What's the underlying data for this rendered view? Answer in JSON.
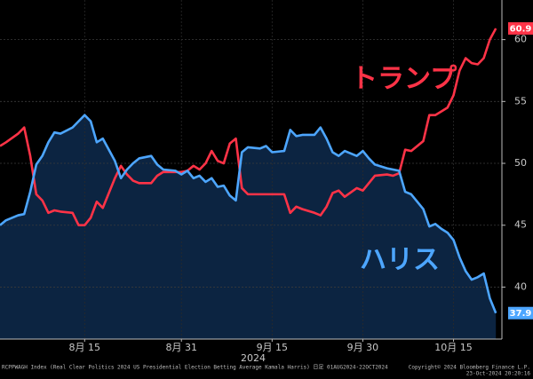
{
  "chart_data": {
    "type": "line",
    "x_label": "2024",
    "footer_left": "RCPPWAGH Index (Real Clear Politics 2024 US Presidential Election Betting Average Kamala Harris) 日足 01AUG2024-22OCT2024",
    "footer_right": "Copyright© 2024 Bloomberg Finance L.P.",
    "footer_time": "23-Oct-2024 20:20:16",
    "x": [
      "2024-08-01",
      "2024-08-02",
      "2024-08-04",
      "2024-08-05",
      "2024-08-06",
      "2024-08-07",
      "2024-08-08",
      "2024-08-09",
      "2024-08-10",
      "2024-08-11",
      "2024-08-13",
      "2024-08-14",
      "2024-08-15",
      "2024-08-16",
      "2024-08-17",
      "2024-08-18",
      "2024-08-20",
      "2024-08-21",
      "2024-08-22",
      "2024-08-23",
      "2024-08-24",
      "2024-08-26",
      "2024-08-27",
      "2024-08-28",
      "2024-08-30",
      "2024-08-31",
      "2024-09-01",
      "2024-09-02",
      "2024-09-03",
      "2024-09-04",
      "2024-09-05",
      "2024-09-06",
      "2024-09-07",
      "2024-09-08",
      "2024-09-09",
      "2024-09-10",
      "2024-09-11",
      "2024-09-13",
      "2024-09-14",
      "2024-09-15",
      "2024-09-17",
      "2024-09-18",
      "2024-09-19",
      "2024-09-20",
      "2024-09-22",
      "2024-09-23",
      "2024-09-24",
      "2024-09-25",
      "2024-09-26",
      "2024-09-27",
      "2024-09-29",
      "2024-09-30",
      "2024-10-01",
      "2024-10-02",
      "2024-10-04",
      "2024-10-05",
      "2024-10-06",
      "2024-10-07",
      "2024-10-08",
      "2024-10-10",
      "2024-10-11",
      "2024-10-12",
      "2024-10-13",
      "2024-10-14",
      "2024-10-15",
      "2024-10-16",
      "2024-10-17",
      "2024-10-18",
      "2024-10-19",
      "2024-10-20",
      "2024-10-21",
      "2024-10-22"
    ],
    "series": [
      {
        "name": "トランプ",
        "color": "#ff3347",
        "values": [
          51.4,
          51.7,
          52.4,
          52.9,
          50.6,
          47.5,
          47.0,
          46.0,
          46.2,
          46.1,
          46.0,
          45.0,
          45.0,
          45.6,
          46.9,
          46.4,
          48.8,
          49.8,
          49.1,
          48.6,
          48.4,
          48.4,
          49.0,
          49.3,
          49.3,
          49.3,
          49.4,
          49.8,
          49.5,
          50.0,
          51.0,
          50.2,
          50.0,
          51.6,
          52.0,
          48.0,
          47.5,
          47.5,
          47.5,
          47.5,
          47.5,
          46.0,
          46.5,
          46.3,
          46.0,
          45.8,
          46.5,
          47.6,
          47.8,
          47.3,
          48.0,
          47.8,
          48.4,
          49.0,
          49.1,
          49.0,
          49.2,
          51.1,
          51.0,
          51.8,
          53.9,
          53.9,
          54.2,
          54.5,
          55.5,
          57.5,
          58.5,
          58.1,
          58.0,
          58.5,
          60.0,
          60.9
        ]
      },
      {
        "name": "ハリス",
        "color": "#4da6ff",
        "fill_color": "#0c2441",
        "values": [
          45.0,
          45.4,
          45.8,
          45.9,
          47.7,
          49.9,
          50.6,
          51.7,
          52.5,
          52.4,
          52.9,
          53.4,
          53.9,
          53.4,
          51.7,
          52.0,
          50.2,
          48.8,
          49.5,
          50.0,
          50.4,
          50.6,
          49.9,
          49.5,
          49.4,
          49.1,
          49.4,
          48.8,
          49.0,
          48.5,
          48.8,
          48.1,
          48.2,
          47.4,
          47.0,
          50.9,
          51.3,
          51.2,
          51.4,
          50.9,
          51.0,
          52.7,
          52.2,
          52.3,
          52.3,
          52.9,
          52.0,
          50.9,
          50.6,
          51.0,
          50.6,
          51.0,
          50.4,
          49.9,
          49.6,
          49.5,
          49.4,
          47.7,
          47.5,
          46.3,
          44.9,
          45.1,
          44.7,
          44.4,
          43.8,
          42.4,
          41.3,
          40.6,
          40.8,
          41.1,
          39.1,
          37.9
        ]
      }
    ],
    "xlim": [
      "2024-08-01",
      "2024-10-23"
    ],
    "xticks": [
      {
        "value": "2024-08-15",
        "label": "8月 15"
      },
      {
        "value": "2024-08-31",
        "label": "8月 31"
      },
      {
        "value": "2024-09-15",
        "label": "9月 15"
      },
      {
        "value": "2024-09-30",
        "label": "9月 30"
      },
      {
        "value": "2024-10-15",
        "label": "10月 15"
      }
    ],
    "ylim": [
      35.8,
      63.2
    ],
    "yticks": [
      40,
      45,
      50,
      55,
      60
    ],
    "grid": true
  }
}
